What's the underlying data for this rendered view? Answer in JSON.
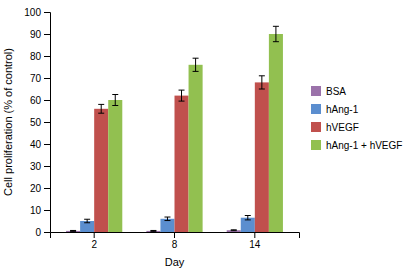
{
  "chart_data": {
    "type": "bar",
    "categories": [
      "2",
      "8",
      "14"
    ],
    "series": [
      {
        "name": "BSA",
        "color": "#9b72aa",
        "values": [
          0.5,
          0.5,
          0.8
        ],
        "errors": [
          0.2,
          0.2,
          0.2
        ]
      },
      {
        "name": "hAng-1",
        "color": "#5b8ecf",
        "values": [
          5.0,
          6.0,
          6.5
        ],
        "errors": [
          0.8,
          0.8,
          1.0
        ]
      },
      {
        "name": "hVEGF",
        "color": "#c0504d",
        "values": [
          56.0,
          62.0,
          68.0
        ],
        "errors": [
          2.0,
          2.5,
          3.0
        ]
      },
      {
        "name": "hAng-1 + hVEGF",
        "color": "#92c050",
        "values": [
          60.0,
          76.0,
          90.0
        ],
        "errors": [
          2.5,
          3.0,
          3.5
        ]
      }
    ],
    "xlabel": "Day",
    "ylabel": "Cell proliferation (% of control)",
    "ylim": [
      0,
      100
    ],
    "yticks": [
      0,
      10,
      20,
      30,
      40,
      50,
      60,
      70,
      80,
      90,
      100
    ],
    "grid": false,
    "legend": "right"
  }
}
